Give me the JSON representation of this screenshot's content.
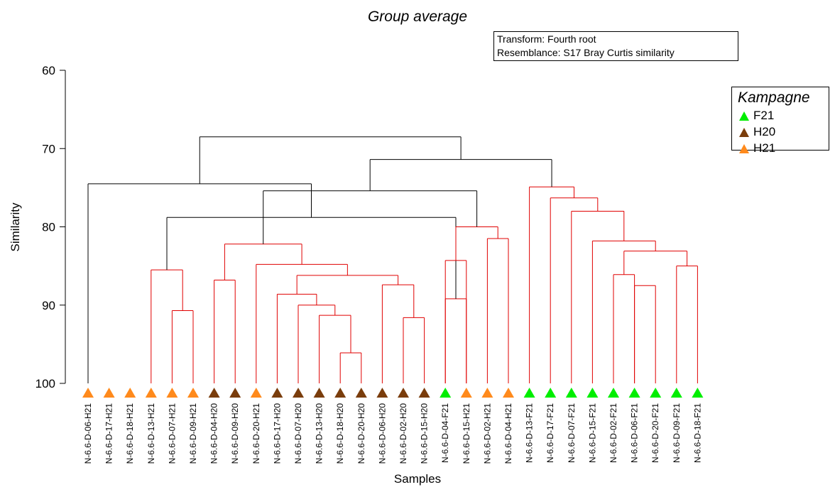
{
  "chart_data": {
    "type": "dendrogram",
    "title": "Group average",
    "transform": "Transform: Fourth root",
    "resemblance": "Resemblance: S17 Bray Curtis similarity",
    "xlabel": "Samples",
    "ylabel": "Similarity",
    "ylim": [
      60,
      100
    ],
    "yticks": [
      60,
      70,
      80,
      90,
      100
    ],
    "legend": {
      "title": "Kampagne",
      "position": "top-right",
      "items": [
        {
          "label": "F21",
          "color": "#00ee00"
        },
        {
          "label": "H20",
          "color": "#7a3d0c"
        },
        {
          "label": "H21",
          "color": "#ff8a1c"
        }
      ]
    },
    "leaves": [
      {
        "label": "N-6.6-D-06-H21",
        "group": "H21"
      },
      {
        "label": "N-6.6-D-17-H21",
        "group": "H21"
      },
      {
        "label": "N-6.6-D-18-H21",
        "group": "H21"
      },
      {
        "label": "N-6.6-D-13-H21",
        "group": "H21"
      },
      {
        "label": "N-6.6-D-07-H21",
        "group": "H21"
      },
      {
        "label": "N-6.6-D-09-H21",
        "group": "H21"
      },
      {
        "label": "N-6.6-D-04-H20",
        "group": "H20"
      },
      {
        "label": "N-6.6-D-09-H20",
        "group": "H20"
      },
      {
        "label": "N-6.6-D-20-H21",
        "group": "H21"
      },
      {
        "label": "N-6.6-D-17-H20",
        "group": "H20"
      },
      {
        "label": "N-6.6-D-07-H20",
        "group": "H20"
      },
      {
        "label": "N-6.6-D-13-H20",
        "group": "H20"
      },
      {
        "label": "N-6.6-D-18-H20",
        "group": "H20"
      },
      {
        "label": "N-6.6-D-20-H20",
        "group": "H20"
      },
      {
        "label": "N-6.6-D-06-H20",
        "group": "H20"
      },
      {
        "label": "N-6.6-D-02-H20",
        "group": "H20"
      },
      {
        "label": "N-6.6-D-15-H20",
        "group": "H20"
      },
      {
        "label": "N-6.6-D-04-F21",
        "group": "F21"
      },
      {
        "label": "N-6.6-D-15-H21",
        "group": "H21"
      },
      {
        "label": "N-6.6-D-02-H21",
        "group": "H21"
      },
      {
        "label": "N-6.6-D-04-H21",
        "group": "H21"
      },
      {
        "label": "N-6.6-D-13-F21",
        "group": "F21"
      },
      {
        "label": "N-6.6-D-17-F21",
        "group": "F21"
      },
      {
        "label": "N-6.6-D-07-F21",
        "group": "F21"
      },
      {
        "label": "N-6.6-D-15-F21",
        "group": "F21"
      },
      {
        "label": "N-6.6-D-02-F21",
        "group": "F21"
      },
      {
        "label": "N-6.6-D-06-F21",
        "group": "F21"
      },
      {
        "label": "N-6.6-D-20-F21",
        "group": "F21"
      },
      {
        "label": "N-6.6-D-09-F21",
        "group": "F21"
      },
      {
        "label": "N-6.6-D-18-F21",
        "group": "F21"
      }
    ],
    "merges": [
      {
        "id": "m1",
        "left": 17,
        "right": 18,
        "similarity": 89.2,
        "significant": false
      },
      {
        "id": "m2",
        "left": 4,
        "right": 5,
        "similarity": 90.7,
        "significant": false
      },
      {
        "id": "m3",
        "left": 3,
        "right": "m2",
        "similarity": 85.5,
        "significant": false
      },
      {
        "id": "m4",
        "left": "m1",
        "right": "m3",
        "similarity": 78.8,
        "significant": true
      },
      {
        "id": "m5",
        "left": 0,
        "right": "m4",
        "similarity": 74.5,
        "significant": true
      },
      {
        "id": "m6",
        "left": 6,
        "right": 7,
        "similarity": 86.8,
        "significant": false
      },
      {
        "id": "m7",
        "left": 12,
        "right": 13,
        "similarity": 96.1,
        "significant": false
      },
      {
        "id": "m8",
        "left": 11,
        "right": "m7",
        "similarity": 91.3,
        "significant": false
      },
      {
        "id": "m9",
        "left": 10,
        "right": "m8",
        "similarity": 90.0,
        "significant": false
      },
      {
        "id": "m10",
        "left": 9,
        "right": "m9",
        "similarity": 88.6,
        "significant": false
      },
      {
        "id": "m11",
        "left": 15,
        "right": 16,
        "similarity": 91.6,
        "significant": false
      },
      {
        "id": "m12",
        "left": 14,
        "right": "m11",
        "similarity": 87.4,
        "significant": false
      },
      {
        "id": "m13",
        "left": "m10",
        "right": "m12",
        "similarity": 86.2,
        "significant": false
      },
      {
        "id": "m14",
        "left": 8,
        "right": "m13",
        "similarity": 84.8,
        "significant": false
      },
      {
        "id": "m15",
        "left": "m6",
        "right": "m14",
        "similarity": 82.2,
        "significant": false
      },
      {
        "id": "m16",
        "left": 17,
        "right": 18,
        "similarity": 84.3,
        "significant": false
      },
      {
        "id": "m17",
        "left": 19,
        "right": 20,
        "similarity": 81.5,
        "significant": false
      },
      {
        "id": "m18",
        "left": "m16",
        "right": "m17",
        "similarity": 80.0,
        "significant": false
      },
      {
        "id": "m19",
        "left": "m15",
        "right": "m18",
        "similarity": 75.4,
        "significant": true
      },
      {
        "id": "m20",
        "left": 25,
        "right": 26,
        "similarity": 86.1,
        "significant": false
      },
      {
        "id": "m21",
        "left": 26,
        "right": 27,
        "similarity": 87.5,
        "significant": false
      },
      {
        "id": "m22",
        "left": 28,
        "right": 29,
        "similarity": 85.0,
        "significant": false
      },
      {
        "id": "m23",
        "left": "m20",
        "right": "m22",
        "similarity": 83.1,
        "significant": false
      },
      {
        "id": "m24",
        "left": 24,
        "right": "m23",
        "similarity": 81.8,
        "significant": false
      },
      {
        "id": "m25",
        "left": 23,
        "right": "m24",
        "similarity": 78.0,
        "significant": false
      },
      {
        "id": "m26",
        "left": 22,
        "right": "m25",
        "similarity": 76.3,
        "significant": false
      },
      {
        "id": "m27",
        "left": 21,
        "right": "m26",
        "similarity": 74.9,
        "significant": false
      },
      {
        "id": "m28",
        "left": "m19",
        "right": "m27",
        "similarity": 71.4,
        "significant": true
      },
      {
        "id": "m29",
        "left": "m5",
        "right": "m28",
        "similarity": 68.5,
        "significant": true
      }
    ]
  }
}
